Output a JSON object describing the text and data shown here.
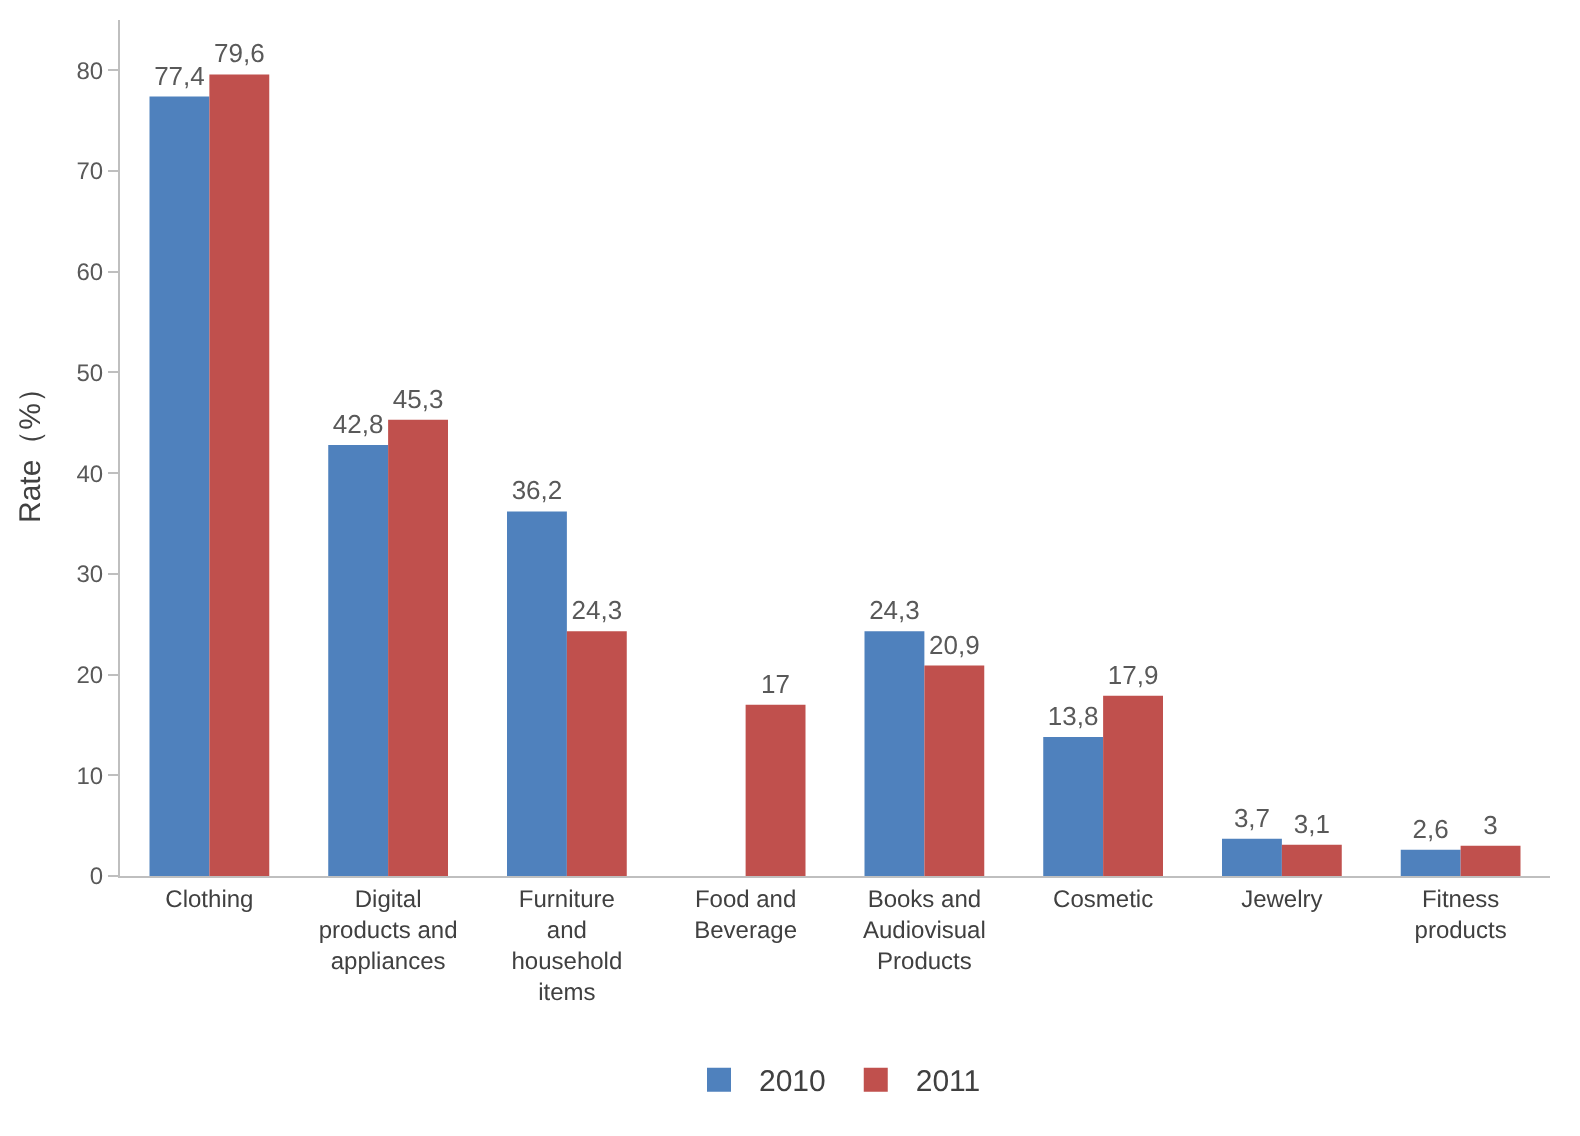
{
  "chart_data": {
    "type": "bar",
    "ylabel": "Rate（%）",
    "categories": [
      "Clothing",
      "Digital products and appliances",
      "Furniture and household items",
      "Food and Beverage",
      "Books and Audiovisual Products",
      "Cosmetic",
      "Jewelry",
      "Fitness products"
    ],
    "series": [
      {
        "name": "2010",
        "color": "#4f81bd",
        "values": [
          77.4,
          42.8,
          36.2,
          null,
          24.3,
          13.8,
          3.7,
          2.6
        ],
        "value_labels": [
          "77,4",
          "42,8",
          "36,2",
          null,
          "24,3",
          "13,8",
          "3,7",
          "2,6"
        ]
      },
      {
        "name": "2011",
        "color": "#c0504d",
        "values": [
          79.6,
          45.3,
          24.3,
          17,
          20.9,
          17.9,
          3.1,
          3
        ],
        "value_labels": [
          "79,6",
          "45,3",
          "24,3",
          "17",
          "20,9",
          "17,9",
          "3,1",
          "3"
        ]
      }
    ],
    "ylim": [
      0,
      85
    ],
    "yticks": [
      0,
      10,
      20,
      30,
      40,
      50,
      60,
      70,
      80
    ],
    "grid": false,
    "legend": "bottom"
  }
}
